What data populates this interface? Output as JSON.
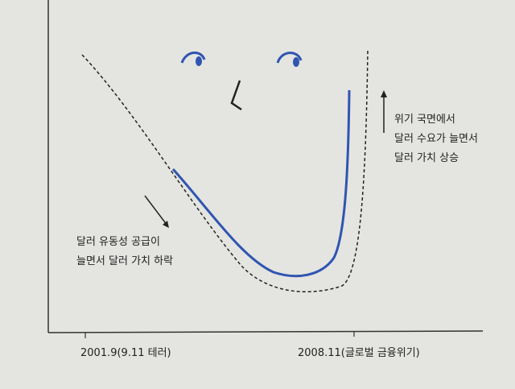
{
  "x_axis_labels": [
    "2001.9(9.11 테러)",
    "2008.11(글로벌 금융위기)"
  ],
  "annotations": [
    {
      "lines": [
        "달러 유동성 공급이",
        "늘면서 달러 가치 하락"
      ]
    },
    {
      "lines": [
        "위기 국면에서",
        "달러 수요가 늘면서",
        "달러 가치 상승"
      ]
    }
  ]
}
